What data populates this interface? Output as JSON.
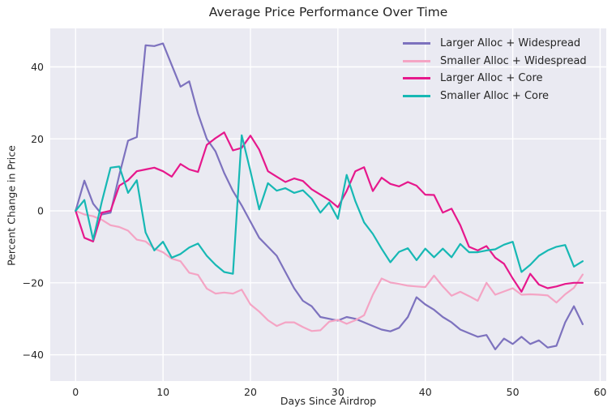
{
  "figure": {
    "title": "Average Price Performance Over Time",
    "xlabel": "Days Since Airdrop",
    "ylabel": "Percent Change in Price"
  },
  "colors": {
    "figure_background": "#ffffff",
    "plot_background": "#eaeaf2",
    "grid": "#ffffff",
    "text": "#262626"
  },
  "chart_data": {
    "type": "line",
    "title": "Average Price Performance Over Time",
    "xlabel": "Days Since Airdrop",
    "ylabel": "Percent Change in Price",
    "grid": true,
    "legend_position": "upper right",
    "xlim": [
      -2.9,
      60.7
    ],
    "ylim": [
      -47.3,
      50.7
    ],
    "xticks": [
      0,
      10,
      20,
      30,
      40,
      50,
      60
    ],
    "xtick_labels": [
      "0",
      "10",
      "20",
      "30",
      "40",
      "50",
      "60"
    ],
    "yticks": [
      -40,
      -20,
      0,
      20,
      40
    ],
    "ytick_labels": [
      "−40",
      "−20",
      "0",
      "20",
      "40"
    ],
    "x": [
      0,
      1,
      2,
      3,
      4,
      5,
      6,
      7,
      8,
      9,
      10,
      11,
      12,
      13,
      14,
      15,
      16,
      17,
      18,
      19,
      20,
      21,
      22,
      23,
      24,
      25,
      26,
      27,
      28,
      29,
      30,
      31,
      32,
      33,
      34,
      35,
      36,
      37,
      38,
      39,
      40,
      41,
      42,
      43,
      44,
      45,
      46,
      47,
      48,
      49,
      50,
      51,
      52,
      53,
      54,
      55,
      56,
      57,
      58
    ],
    "series": [
      {
        "name": "Larger Alloc + Widespread",
        "color": "#7d72be",
        "values": [
          0,
          8.4,
          2,
          -1,
          -0.5,
          10,
          19.5,
          20.5,
          46,
          45.8,
          46.5,
          40.5,
          34.5,
          36,
          27,
          20,
          16.5,
          10.5,
          5.5,
          1.5,
          -3,
          -7.5,
          -10,
          -12.5,
          -17,
          -21.5,
          -25,
          -26.5,
          -29.5,
          -30,
          -30.5,
          -29.5,
          -30,
          -31,
          -32,
          -33,
          -33.5,
          -32.5,
          -29.5,
          -24,
          -26,
          -27.5,
          -29.5,
          -31,
          -33,
          -34,
          -35,
          -34.5,
          -38.5,
          -35.5,
          -37,
          -35,
          -37,
          -36,
          -38,
          -37.5,
          -31,
          -26.5,
          -31.5
        ]
      },
      {
        "name": "Smaller Alloc + Widespread",
        "color": "#f4a4c4",
        "values": [
          0,
          -1,
          -1.5,
          -2.5,
          -4,
          -4.5,
          -5.5,
          -8,
          -8.5,
          -10.5,
          -11.5,
          -13.3,
          -14,
          -17.2,
          -17.8,
          -21.6,
          -23,
          -22.7,
          -23,
          -21.9,
          -26,
          -28,
          -30.4,
          -32,
          -31,
          -31,
          -32.3,
          -33.4,
          -33.2,
          -30.8,
          -30.3,
          -31.4,
          -30.4,
          -29,
          -23.3,
          -18.8,
          -19.9,
          -20.3,
          -20.8,
          -21,
          -21.2,
          -18,
          -21,
          -23.6,
          -22.5,
          -23.7,
          -25,
          -20,
          -23.3,
          -22.4,
          -21.5,
          -23.3,
          -23.2,
          -23.3,
          -23.5,
          -25.5,
          -23.2,
          -21.4,
          -17.7
        ]
      },
      {
        "name": "Larger Alloc + Core",
        "color": "#e6188c",
        "values": [
          0,
          -7.5,
          -8.5,
          -0.5,
          0,
          7,
          8.5,
          11,
          11.5,
          12,
          11,
          9.5,
          13,
          11.5,
          10.8,
          18.3,
          20.2,
          21.8,
          16.8,
          17.5,
          20.9,
          17,
          11,
          9.5,
          8,
          9,
          8.3,
          6,
          4.5,
          3,
          1,
          5.5,
          11,
          12.1,
          5.5,
          9.2,
          7.5,
          6.8,
          8,
          7,
          4.5,
          4.4,
          -0.5,
          0.6,
          -4,
          -10,
          -11,
          -9.8,
          -13,
          -14.7,
          -18.8,
          -22.5,
          -17.5,
          -20.5,
          -21.5,
          -21,
          -20.3,
          -20,
          -20
        ]
      },
      {
        "name": "Smaller Alloc + Core",
        "color": "#17b8b4",
        "values": [
          0,
          3,
          -8,
          2.5,
          12,
          12.3,
          5,
          8.5,
          -6,
          -11,
          -8.6,
          -13,
          -12,
          -10.2,
          -9.1,
          -12.5,
          -15,
          -17,
          -17.5,
          21,
          11,
          0.4,
          7.7,
          5.6,
          6.3,
          5,
          5.7,
          3.4,
          -0.5,
          2.3,
          -2.2,
          10,
          2.7,
          -3.2,
          -6.4,
          -10.5,
          -14.3,
          -11.4,
          -10.4,
          -13.7,
          -10.5,
          -12.9,
          -10.5,
          -12.9,
          -9.2,
          -11.5,
          -11.5,
          -11,
          -10.7,
          -9.4,
          -8.6,
          -17,
          -15,
          -12.5,
          -11,
          -10,
          -9.5,
          -15.5,
          -14
        ]
      }
    ]
  }
}
